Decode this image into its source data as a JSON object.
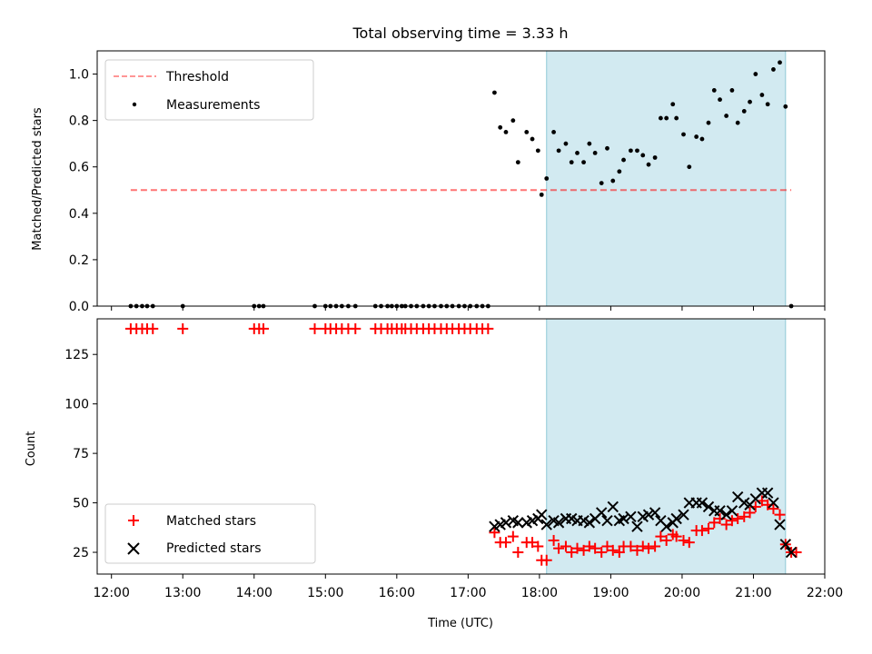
{
  "title": "Total observing time = 3.33 h",
  "chart_data": [
    {
      "type": "scatter",
      "ylabel": "Matched/Predicted stars",
      "xlim": [
        11.8,
        22.0
      ],
      "ylim": [
        0,
        1.1
      ],
      "yticks": [
        0.0,
        0.2,
        0.4,
        0.6,
        0.8,
        1.0
      ],
      "ytick_labels": [
        "0.0",
        "0.2",
        "0.4",
        "0.6",
        "0.8",
        "1.0"
      ],
      "shaded_span": [
        18.1,
        21.45
      ],
      "shade_color": "#add8e6",
      "threshold": {
        "name": "Threshold",
        "value": 0.5,
        "x": [
          12.27,
          21.53
        ],
        "color": "#ff0000"
      },
      "legend": {
        "position": "upper left",
        "entries": [
          "Threshold",
          "Measurements"
        ]
      },
      "series": [
        {
          "name": "Measurements",
          "color": "#000000",
          "x": [
            12.27,
            12.35,
            12.43,
            12.5,
            12.58,
            13.0,
            14.0,
            14.07,
            14.13,
            14.85,
            15.0,
            15.07,
            15.15,
            15.23,
            15.32,
            15.42,
            15.7,
            15.78,
            15.87,
            15.93,
            16.0,
            16.07,
            16.12,
            16.2,
            16.28,
            16.37,
            16.45,
            16.53,
            16.62,
            16.7,
            16.78,
            16.87,
            16.95,
            17.03,
            17.12,
            17.2,
            17.28,
            17.37,
            17.45,
            17.53,
            17.63,
            17.7,
            17.82,
            17.9,
            17.98,
            18.03,
            18.1,
            18.2,
            18.27,
            18.37,
            18.45,
            18.53,
            18.62,
            18.7,
            18.78,
            18.87,
            18.95,
            19.03,
            19.12,
            19.18,
            19.28,
            19.37,
            19.45,
            19.53,
            19.62,
            19.7,
            19.78,
            19.87,
            19.92,
            20.02,
            20.1,
            20.2,
            20.28,
            20.37,
            20.45,
            20.53,
            20.62,
            20.7,
            20.78,
            20.87,
            20.95,
            21.03,
            21.12,
            21.2,
            21.28,
            21.37,
            21.45,
            21.53
          ],
          "y": [
            0,
            0,
            0,
            0,
            0,
            0,
            0,
            0,
            0,
            0,
            0,
            0,
            0,
            0,
            0,
            0,
            0,
            0,
            0,
            0,
            0,
            0,
            0,
            0,
            0,
            0,
            0,
            0,
            0,
            0,
            0,
            0,
            0,
            0,
            0,
            0,
            0,
            0.92,
            0.77,
            0.75,
            0.8,
            0.62,
            0.75,
            0.72,
            0.67,
            0.48,
            0.55,
            0.75,
            0.67,
            0.7,
            0.62,
            0.66,
            0.62,
            0.7,
            0.66,
            0.53,
            0.68,
            0.54,
            0.58,
            0.63,
            0.67,
            0.67,
            0.65,
            0.61,
            0.64,
            0.81,
            0.81,
            0.87,
            0.81,
            0.74,
            0.6,
            0.73,
            0.72,
            0.79,
            0.93,
            0.89,
            0.82,
            0.93,
            0.79,
            0.84,
            0.88,
            1.0,
            0.91,
            0.87,
            1.02,
            1.05,
            0.86,
            0
          ]
        }
      ]
    },
    {
      "type": "scatter",
      "xlabel": "Time (UTC)",
      "ylabel": "Count",
      "xlim": [
        11.8,
        22.0
      ],
      "ylim": [
        14,
        143
      ],
      "yticks": [
        25,
        50,
        75,
        100,
        125
      ],
      "ytick_labels": [
        "25",
        "50",
        "75",
        "100",
        "125"
      ],
      "xticks": [
        12,
        13,
        14,
        15,
        16,
        17,
        18,
        19,
        20,
        21,
        22
      ],
      "xtick_labels": [
        "12:00",
        "13:00",
        "14:00",
        "15:00",
        "16:00",
        "17:00",
        "18:00",
        "19:00",
        "20:00",
        "21:00",
        "22:00"
      ],
      "shaded_span": [
        18.1,
        21.45
      ],
      "shade_color": "#add8e6",
      "legend": {
        "position": "lower left",
        "entries": [
          "Matched stars",
          "Predicted stars"
        ]
      },
      "series": [
        {
          "name": "Matched stars",
          "marker": "plus",
          "color": "#ff0000",
          "x": [
            12.27,
            12.35,
            12.43,
            12.5,
            12.58,
            13.0,
            14.0,
            14.07,
            14.13,
            14.85,
            15.0,
            15.07,
            15.15,
            15.23,
            15.32,
            15.42,
            15.7,
            15.78,
            15.87,
            15.93,
            16.0,
            16.07,
            16.12,
            16.2,
            16.28,
            16.37,
            16.45,
            16.53,
            16.62,
            16.7,
            16.78,
            16.87,
            16.95,
            17.03,
            17.12,
            17.2,
            17.28,
            17.37,
            17.45,
            17.53,
            17.63,
            17.7,
            17.82,
            17.9,
            17.98,
            18.03,
            18.1,
            18.2,
            18.27,
            18.37,
            18.45,
            18.53,
            18.62,
            18.7,
            18.78,
            18.87,
            18.95,
            19.03,
            19.12,
            19.18,
            19.28,
            19.37,
            19.45,
            19.53,
            19.62,
            19.7,
            19.78,
            19.87,
            19.92,
            20.02,
            20.1,
            20.2,
            20.28,
            20.37,
            20.45,
            20.53,
            20.62,
            20.7,
            20.78,
            20.87,
            20.95,
            21.03,
            21.12,
            21.2,
            21.28,
            21.37,
            21.45,
            21.53,
            21.6
          ],
          "y": [
            138,
            138,
            138,
            138,
            138,
            138,
            138,
            138,
            138,
            138,
            138,
            138,
            138,
            138,
            138,
            138,
            138,
            138,
            138,
            138,
            138,
            138,
            138,
            138,
            138,
            138,
            138,
            138,
            138,
            138,
            138,
            138,
            138,
            138,
            138,
            138,
            138,
            35,
            30,
            30,
            33,
            25,
            30,
            30,
            28,
            21,
            21,
            31,
            27,
            28,
            25,
            27,
            26,
            28,
            27,
            25,
            28,
            26,
            25,
            28,
            28,
            26,
            28,
            27,
            28,
            33,
            31,
            34,
            33,
            31,
            30,
            36,
            36,
            37,
            40,
            42,
            39,
            41,
            42,
            43,
            45,
            48,
            51,
            49,
            47,
            44,
            29,
            25,
            25
          ]
        },
        {
          "name": "Predicted stars",
          "marker": "x",
          "color": "#000000",
          "x": [
            17.37,
            17.45,
            17.53,
            17.63,
            17.7,
            17.82,
            17.9,
            17.98,
            18.03,
            18.1,
            18.2,
            18.27,
            18.37,
            18.45,
            18.53,
            18.62,
            18.7,
            18.78,
            18.87,
            18.95,
            19.03,
            19.12,
            19.18,
            19.28,
            19.37,
            19.45,
            19.53,
            19.62,
            19.7,
            19.78,
            19.87,
            19.92,
            20.02,
            20.1,
            20.2,
            20.28,
            20.37,
            20.45,
            20.53,
            20.62,
            20.7,
            20.78,
            20.87,
            20.95,
            21.03,
            21.12,
            21.2,
            21.28,
            21.37,
            21.45,
            21.53
          ],
          "y": [
            38,
            39,
            40,
            41,
            40,
            40,
            41,
            42,
            44,
            39,
            41,
            40,
            42,
            42,
            41,
            41,
            40,
            42,
            45,
            41,
            48,
            41,
            42,
            43,
            38,
            43,
            44,
            45,
            41,
            38,
            40,
            42,
            44,
            50,
            50,
            50,
            48,
            46,
            46,
            44,
            46,
            53,
            50,
            49,
            52,
            55,
            55,
            50,
            39,
            29,
            25
          ]
        }
      ]
    }
  ]
}
